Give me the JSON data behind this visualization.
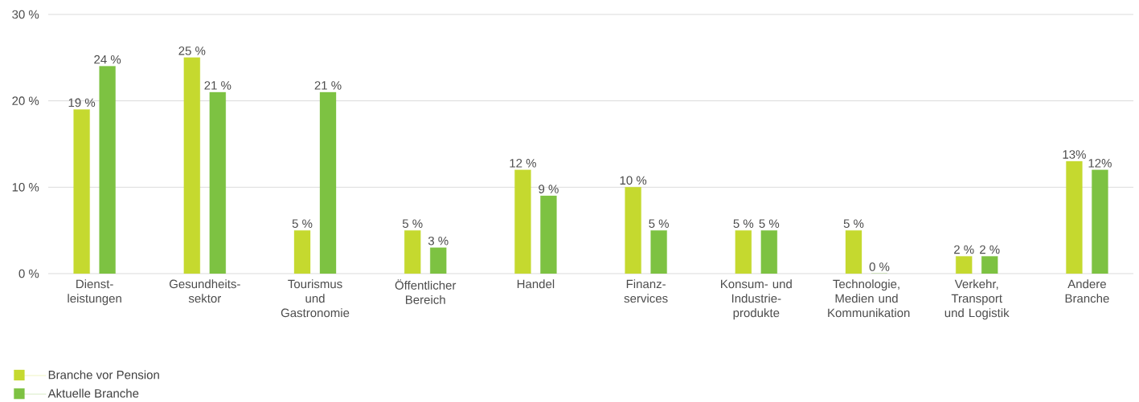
{
  "chart_data": {
    "type": "bar",
    "categories": [
      "Dienst-leistungen",
      "Gesundheits-sektor",
      "Tourismus und Gastronomie",
      "Öffentlicher Bereich",
      "Handel",
      "Finanz-services",
      "Konsum- und Industrie-produkte",
      "Technologie, Medien und Kommunikation",
      "Verkehr, Transport und Logistik",
      "Andere Branche"
    ],
    "series": [
      {
        "name": "Branche vor Pension",
        "color": "#c5d92f",
        "values": [
          19,
          25,
          5,
          5,
          12,
          10,
          5,
          5,
          2,
          13
        ],
        "value_labels": [
          "19 %",
          "25 %",
          "5 %",
          "5 %",
          "12 %",
          "10 %",
          "5 %",
          "5 %",
          "2 %",
          "13%"
        ]
      },
      {
        "name": "Aktuelle Branche",
        "color": "#7dc242",
        "values": [
          24,
          21,
          21,
          3,
          9,
          5,
          5,
          0,
          2,
          12
        ],
        "value_labels": [
          "24 %",
          "21 %",
          "21 %",
          "3 %",
          "9 %",
          "5 %",
          "5 %",
          "0 %",
          "2 %",
          "12%"
        ]
      }
    ],
    "ylim": [
      0,
      30
    ],
    "yticks": [
      {
        "value": 0,
        "label": "0 %"
      },
      {
        "value": 10,
        "label": "10 %"
      },
      {
        "value": 20,
        "label": "20 %"
      },
      {
        "value": 30,
        "label": "30 %"
      }
    ],
    "grid": "y",
    "legend": "bottom left"
  }
}
